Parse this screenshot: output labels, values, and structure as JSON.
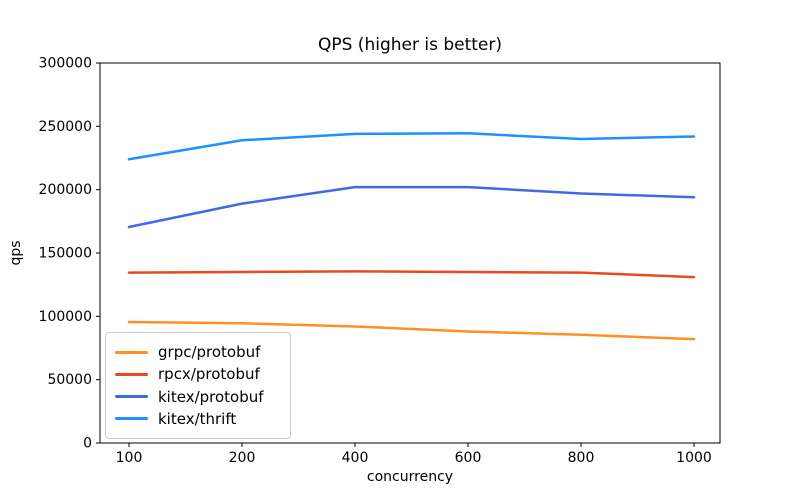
{
  "chart_data": {
    "type": "line",
    "title": "QPS (higher is better)",
    "xlabel": "concurrency",
    "ylabel": "qps",
    "categories": [
      100,
      200,
      400,
      600,
      800,
      1000
    ],
    "yticks": [
      0,
      50000,
      100000,
      150000,
      200000,
      250000,
      300000
    ],
    "ylim": [
      0,
      300000
    ],
    "grid": false,
    "legend_position": "lower left",
    "axis_color": "#000000",
    "background_color": "#ffffff",
    "series": [
      {
        "name": "grpc/protobuf",
        "color": "#FF9124",
        "values": [
          95500,
          94500,
          92000,
          88000,
          85500,
          82000
        ]
      },
      {
        "name": "rpcx/protobuf",
        "color": "#EA491F",
        "values": [
          134500,
          135000,
          135500,
          135000,
          134500,
          131000
        ]
      },
      {
        "name": "kitex/protobuf",
        "color": "#4169E1",
        "values": [
          170500,
          189000,
          202000,
          202000,
          197000,
          194000
        ]
      },
      {
        "name": "kitex/thrift",
        "color": "#1E90FF",
        "values": [
          224000,
          239000,
          244000,
          244500,
          240000,
          242000
        ]
      }
    ]
  }
}
